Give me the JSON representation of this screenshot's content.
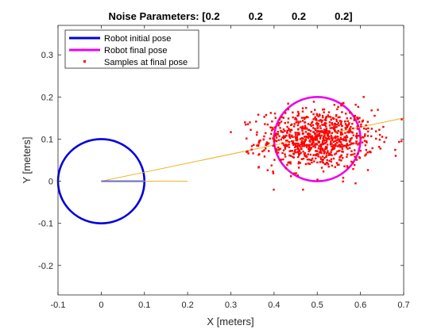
{
  "chart_data": {
    "type": "scatter",
    "title": "Noise Parameters: [0.2          0.2          0.2          0.2]",
    "xlabel": "X [meters]",
    "ylabel": "Y [meters]",
    "xlim": [
      -0.1,
      0.7
    ],
    "ylim": [
      -0.27,
      0.37
    ],
    "xticks": [
      -0.1,
      0,
      0.1,
      0.2,
      0.3,
      0.4,
      0.5,
      0.6,
      0.7
    ],
    "xtick_labels": [
      "-0.1",
      "0",
      "0.1",
      "0.2",
      "0.3",
      "0.4",
      "0.5",
      "0.6",
      "0.7"
    ],
    "yticks": [
      -0.2,
      -0.1,
      0,
      0.1,
      0.2,
      0.3
    ],
    "ytick_labels": [
      "-0.2",
      "-0.1",
      "0",
      "0.1",
      "0.2",
      "0.3"
    ],
    "grid": false,
    "legend_position": "top-left",
    "series": [
      {
        "name": "Robot initial pose",
        "kind": "circle",
        "center": [
          0,
          0
        ],
        "radius": 0.1,
        "heading_to": [
          0.1,
          0
        ],
        "color": "#0000dd"
      },
      {
        "name": "Robot final pose",
        "kind": "circle",
        "center": [
          0.5,
          0.1
        ],
        "radius": 0.1,
        "color": "#ee00ee"
      },
      {
        "name": "Samples at final pose",
        "kind": "points",
        "color": "#ff0000",
        "count": 900,
        "mean": [
          0.5,
          0.1
        ],
        "std": [
          0.065,
          0.035
        ],
        "extent_x": [
          0.3,
          0.7
        ],
        "extent_y": [
          -0.02,
          0.2
        ]
      }
    ],
    "annotations": [
      {
        "kind": "line",
        "from": [
          0,
          0
        ],
        "to": [
          0.2,
          0
        ],
        "color": "#edb120"
      },
      {
        "kind": "line",
        "from": [
          0,
          0
        ],
        "to": [
          0.7,
          0.15
        ],
        "color": "#edb120"
      }
    ]
  }
}
